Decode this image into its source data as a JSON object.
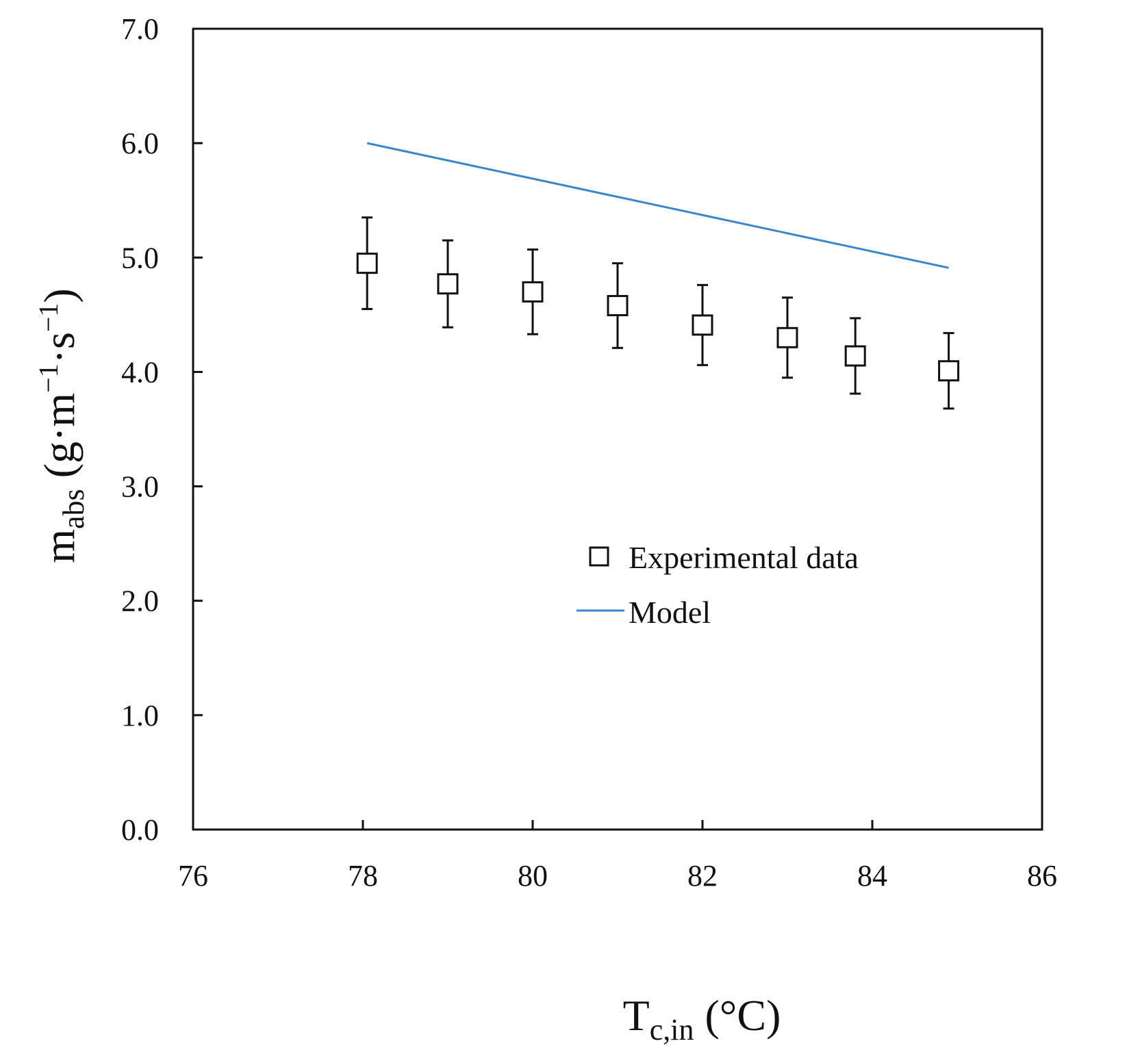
{
  "chart_data": {
    "type": "scatter",
    "xlabel": {
      "main": "T",
      "sub": "c,in",
      "unit": " (°C)"
    },
    "ylabel": {
      "main": "m",
      "sub": "abs",
      "unit": " (g·m",
      "exp1": "−1",
      "mid": "·s",
      "exp2": "−1",
      "close": ")"
    },
    "xlim": [
      76,
      86
    ],
    "ylim": [
      0.0,
      7.0
    ],
    "x_ticks": [
      76,
      78,
      80,
      82,
      84,
      86
    ],
    "x_tick_labels": [
      "76",
      "78",
      "80",
      "82",
      "84",
      "86"
    ],
    "y_ticks": [
      0,
      1,
      2,
      3,
      4,
      5,
      6,
      7
    ],
    "y_tick_labels": [
      "0.0",
      "1.0",
      "2.0",
      "3.0",
      "4.0",
      "5.0",
      "6.0",
      "7.0"
    ],
    "grid": false,
    "legend_position": "center-right",
    "series": [
      {
        "name": "Experimental data",
        "kind": "scatter",
        "marker": "open-square",
        "color": "#000000",
        "x": [
          78.05,
          79.0,
          80.0,
          81.0,
          82.0,
          83.0,
          83.8,
          84.9
        ],
        "y": [
          4.95,
          4.77,
          4.7,
          4.58,
          4.41,
          4.3,
          4.14,
          4.01
        ],
        "error": [
          0.4,
          0.38,
          0.37,
          0.37,
          0.35,
          0.35,
          0.33,
          0.33
        ]
      },
      {
        "name": "Model",
        "kind": "line",
        "color": "#3a86c8",
        "x": [
          78.05,
          84.9
        ],
        "y": [
          6.0,
          4.91
        ]
      }
    ]
  }
}
